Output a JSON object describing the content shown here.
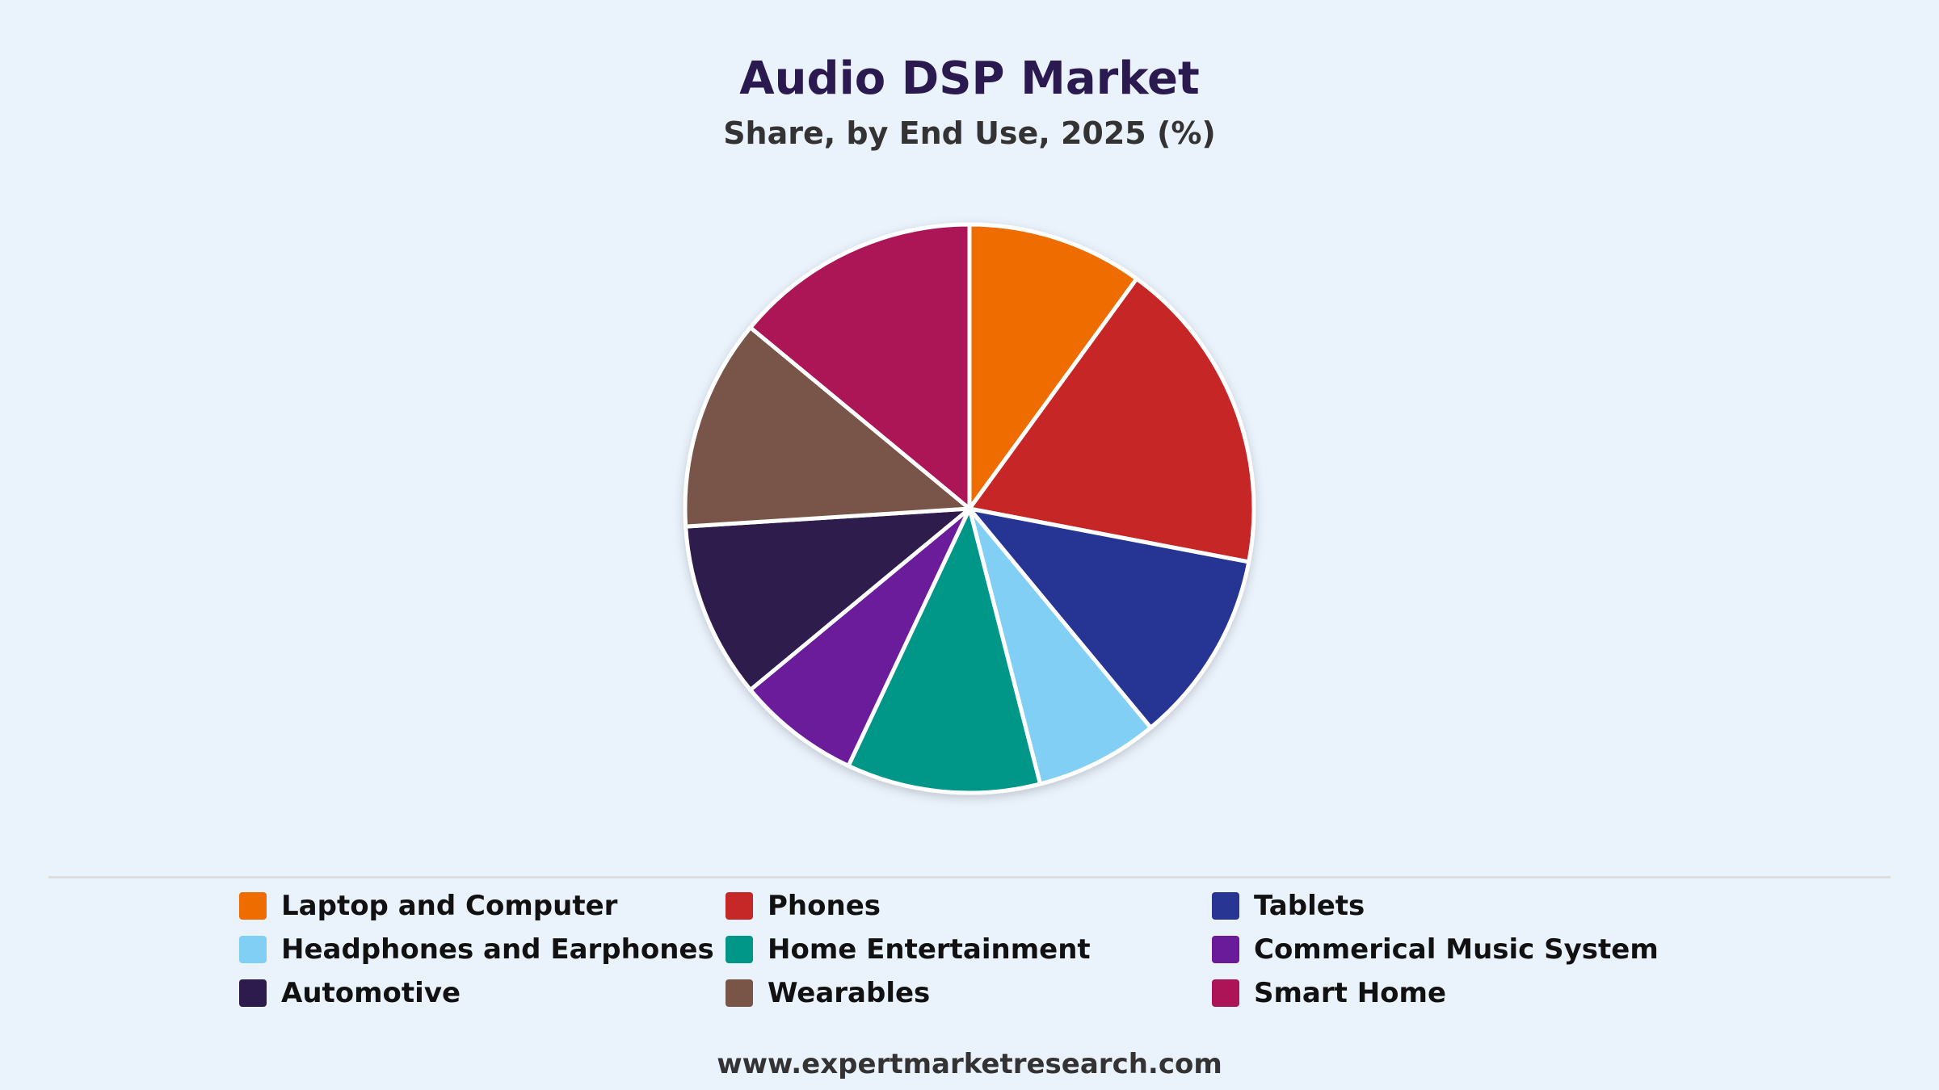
{
  "chart_data": {
    "type": "pie",
    "title": "Audio DSP Market",
    "subtitle": "Share, by End Use, 2025 (%)",
    "slices": [
      {
        "label": "Laptop and Computer",
        "value": 10,
        "color": "#ef6c00"
      },
      {
        "label": "Phones",
        "value": 18,
        "color": "#c62828"
      },
      {
        "label": "Tablets",
        "value": 11,
        "color": "#283593"
      },
      {
        "label": "Headphones and Earphones",
        "value": 7,
        "color": "#81cff4"
      },
      {
        "label": "Home Entertainment",
        "value": 11,
        "color": "#009688"
      },
      {
        "label": "Commerical Music System",
        "value": 7,
        "color": "#6a1b9a"
      },
      {
        "label": "Automotive",
        "value": 10,
        "color": "#2d1b4e"
      },
      {
        "label": "Wearables",
        "value": 12,
        "color": "#795548"
      },
      {
        "label": "Smart Home",
        "value": 14,
        "color": "#ad1457"
      }
    ],
    "legend_position": "bottom",
    "grid": false
  },
  "footer": {
    "source": "www.expertmarketresearch.com"
  }
}
